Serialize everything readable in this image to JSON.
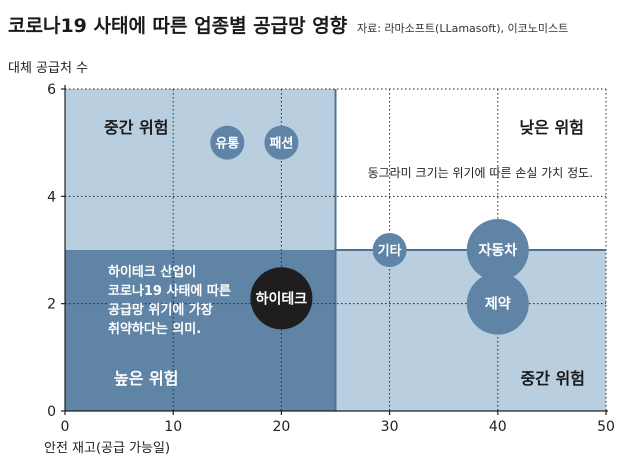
{
  "chart_data": {
    "type": "scatter",
    "title": "코로나19 사태에 따른 업종별 공급망 영향",
    "source": "자료: 라마소프트(LLamasoft), 이코노미스트",
    "xlabel": "안전 재고(공급 가능일)",
    "ylabel": "대체 공급처 수",
    "xlim": [
      0,
      50
    ],
    "ylim": [
      0,
      6
    ],
    "x_ticks": [
      0,
      10,
      20,
      30,
      40,
      50
    ],
    "y_ticks": [
      0,
      2,
      4,
      6
    ],
    "x_tick_labels": [
      "0",
      "10",
      "20",
      "30",
      "40",
      "50"
    ],
    "y_tick_labels": [
      "0",
      "2",
      "4",
      "6"
    ],
    "zones": [
      {
        "name": "중간 위험",
        "x_range": [
          0,
          25
        ],
        "y_range": [
          3,
          6
        ],
        "color": "#b9cfe0"
      },
      {
        "name": "낮은 위험",
        "x_range": [
          25,
          50
        ],
        "y_range": [
          3,
          6
        ],
        "color": "#ffffff"
      },
      {
        "name": "높은 위험",
        "x_range": [
          0,
          25
        ],
        "y_range": [
          0,
          3
        ],
        "color": "#5f84a6"
      },
      {
        "name": "중간 위험",
        "x_range": [
          25,
          50
        ],
        "y_range": [
          0,
          3
        ],
        "color": "#b9cfe0"
      }
    ],
    "points": [
      {
        "label": "유통",
        "x": 15,
        "y": 5.0,
        "color": "#5f84a6"
      },
      {
        "label": "패션",
        "x": 20,
        "y": 5.0,
        "color": "#5f84a6"
      },
      {
        "label": "기타",
        "x": 30,
        "y": 3.0,
        "color": "#5f84a6"
      },
      {
        "label": "자동차",
        "x": 40,
        "y": 3.0,
        "color": "#5f84a6"
      },
      {
        "label": "제약",
        "x": 40,
        "y": 2.0,
        "color": "#5f84a6"
      },
      {
        "label": "하이테크",
        "x": 20,
        "y": 2.1,
        "color": "#1f1d1d"
      }
    ],
    "annotations": [
      {
        "text": "동그라미 크기는 위기에 따른 손실 가치 정도."
      },
      {
        "lines": [
          "하이테크 산업이",
          "코로나19 사태에 따른",
          "공급망 위기에 가장",
          "취약하다는 의미."
        ]
      }
    ]
  }
}
